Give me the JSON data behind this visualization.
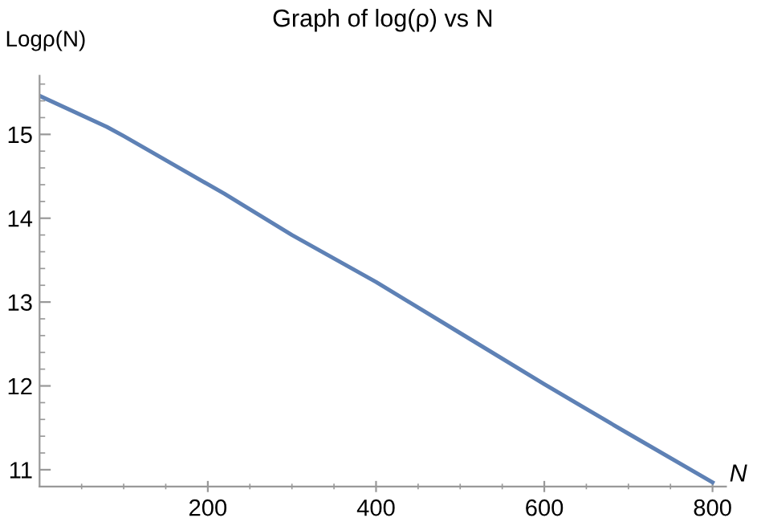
{
  "chart_data": {
    "type": "line",
    "title": "Graph of log(ρ) vs N",
    "xlabel": "N",
    "ylabel": "Logρ(N)",
    "x": [
      0,
      80,
      100,
      220,
      300,
      400,
      500,
      600,
      700,
      800
    ],
    "series": [
      {
        "color": "#5e81b5",
        "values": [
          15.46,
          15.09,
          14.98,
          14.29,
          13.8,
          13.24,
          12.63,
          12.02,
          11.43,
          10.85
        ]
      }
    ],
    "xlim": [
      0,
      816
    ],
    "ylim": [
      10.8,
      15.7
    ],
    "xticks": [
      {
        "value": 50,
        "label": null
      },
      {
        "value": 100,
        "label": null
      },
      {
        "value": 150,
        "label": null
      },
      200,
      {
        "value": 250,
        "label": null
      },
      {
        "value": 300,
        "label": null
      },
      {
        "value": 350,
        "label": null
      },
      400,
      {
        "value": 450,
        "label": null
      },
      {
        "value": 500,
        "label": null
      },
      {
        "value": 550,
        "label": null
      },
      600,
      {
        "value": 650,
        "label": null
      },
      {
        "value": 700,
        "label": null
      },
      {
        "value": 750,
        "label": null
      },
      800
    ],
    "yticks": [
      {
        "value": 11.2,
        "label": null
      },
      {
        "value": 11.4,
        "label": null
      },
      {
        "value": 11.6,
        "label": null
      },
      {
        "value": 11.8,
        "label": null
      },
      11,
      12,
      {
        "value": 12.2,
        "label": null
      },
      {
        "value": 12.4,
        "label": null
      },
      {
        "value": 12.6,
        "label": null
      },
      {
        "value": 12.8,
        "label": null
      },
      13,
      {
        "value": 13.2,
        "label": null
      },
      {
        "value": 13.4,
        "label": null
      },
      {
        "value": 13.6,
        "label": null
      },
      {
        "value": 13.8,
        "label": null
      },
      14,
      {
        "value": 14.2,
        "label": null
      },
      {
        "value": 14.4,
        "label": null
      },
      {
        "value": 14.6,
        "label": null
      },
      {
        "value": 14.8,
        "label": null
      },
      15,
      {
        "value": 15.2,
        "label": null
      },
      {
        "value": 15.4,
        "label": null
      },
      {
        "value": 15.6,
        "label": null
      }
    ],
    "grid": false,
    "legend": false,
    "marker": "none",
    "line_style": "solid"
  }
}
